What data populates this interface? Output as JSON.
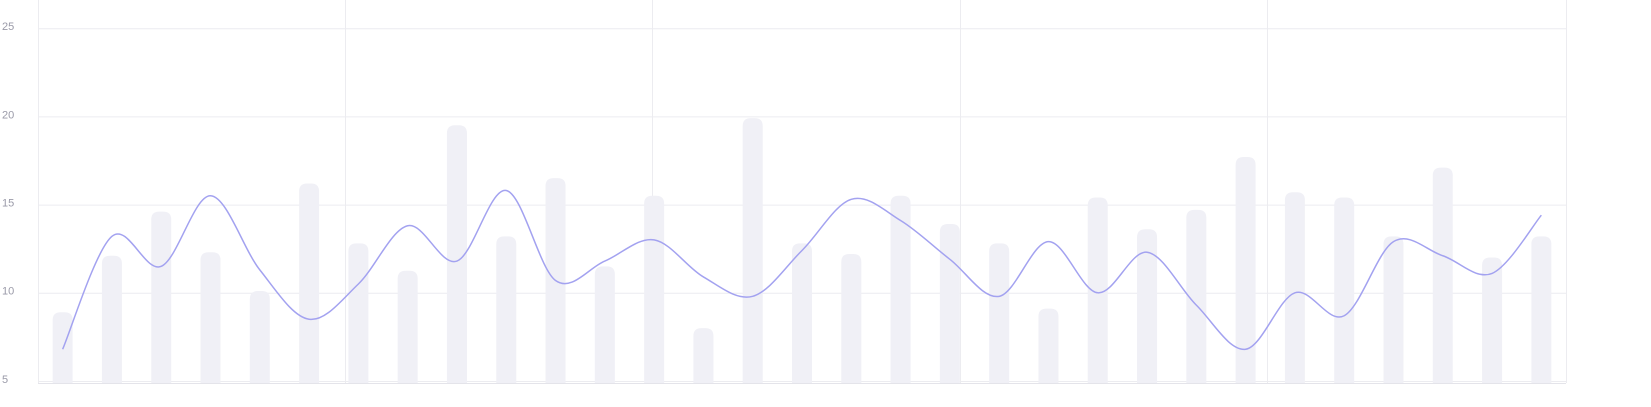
{
  "chart_data": {
    "type": "bar-line",
    "ylim": [
      5,
      26.6
    ],
    "yticks": [
      5,
      10,
      15,
      20,
      25
    ],
    "grid": true,
    "series": [
      {
        "type": "bar",
        "color": "#f0f0f6",
        "values": [
          8.9,
          12.1,
          14.6,
          12.3,
          10.1,
          16.2,
          12.8,
          11.25,
          19.5,
          13.2,
          16.5,
          11.5,
          15.5,
          8.0,
          19.9,
          12.8,
          12.2,
          15.5,
          13.9,
          12.8,
          9.1,
          15.4,
          13.6,
          14.7,
          17.7,
          15.7,
          15.4,
          13.2,
          17.1,
          12.0,
          13.2
        ]
      },
      {
        "type": "line",
        "color": "#a3a2f0",
        "values": [
          6.8,
          13.2,
          11.5,
          15.5,
          11.3,
          8.5,
          10.5,
          13.8,
          11.8,
          15.8,
          10.7,
          11.8,
          13.0,
          10.9,
          9.8,
          12.4,
          15.3,
          14.1,
          11.9,
          9.8,
          12.9,
          10.0,
          12.3,
          9.3,
          6.8,
          10.0,
          8.7,
          12.9,
          12.1,
          11.1,
          14.4
        ]
      }
    ]
  }
}
